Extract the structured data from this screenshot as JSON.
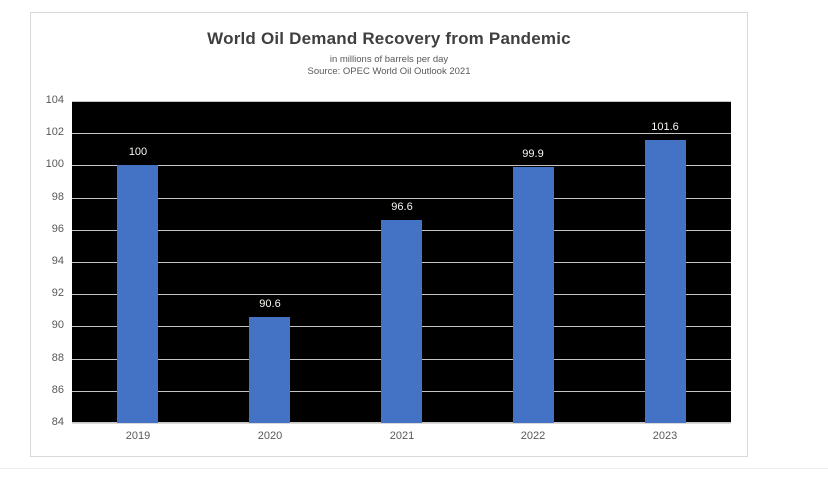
{
  "chart_data": {
    "type": "bar",
    "title": "World Oil Demand Recovery from Pandemic",
    "subtitle": "in millions of barrels per day",
    "source_note": "Source: OPEC World Oil Outlook 2021",
    "categories": [
      "2019",
      "2020",
      "2021",
      "2022",
      "2023"
    ],
    "values": [
      100,
      90.6,
      96.6,
      99.9,
      101.6
    ],
    "data_labels": [
      "100",
      "90.6",
      "96.6",
      "99.9",
      "101.6"
    ],
    "xlabel": "",
    "ylabel": "",
    "ylim": [
      84,
      104
    ],
    "yticks": [
      84,
      86,
      88,
      90,
      92,
      94,
      96,
      98,
      100,
      102,
      104
    ],
    "grid": true,
    "legend": false,
    "colors": {
      "bar": "#4472C4",
      "plot_background": "#000000",
      "gridline": "#D9D9D9",
      "data_label": "#FAF7F2",
      "axis_label": "#595959",
      "title": "#3F3F3F",
      "card_background": "#FFFFFF",
      "card_border": "#D9D9D9"
    }
  }
}
